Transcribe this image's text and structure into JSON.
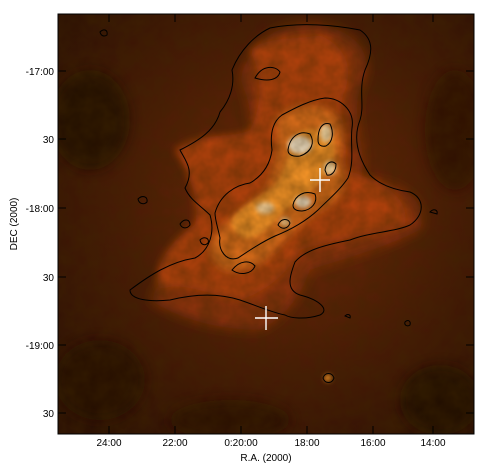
{
  "axes": {
    "xlabel": "R.A. (2000)",
    "ylabel": "DEC (2000)",
    "x_ticks": [
      "24:00",
      "22:00",
      "0:20:00",
      "18:00",
      "16:00",
      "14:00"
    ],
    "y_ticks": [
      "-17:00",
      "30",
      "-18:00",
      "30",
      "-19:00",
      "30"
    ]
  },
  "colors": {
    "background_dark": "#3a1405",
    "emission_mid": "#c0440a",
    "emission_bright": "#ff9a2a",
    "emission_peak": "#fff1d8",
    "contour": "#000000",
    "marker": "#ffffff"
  },
  "markers": [
    "cross",
    "cross"
  ]
}
